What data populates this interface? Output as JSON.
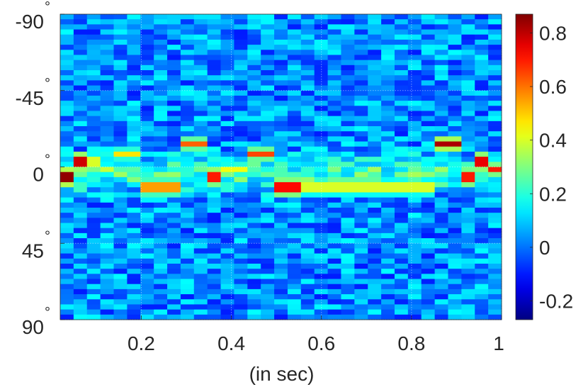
{
  "chart_data": {
    "type": "heatmap",
    "title": "",
    "xlabel": "(in sec)",
    "ylabel": "",
    "xlim": [
      0.02,
      1.0
    ],
    "ylim": [
      -90,
      90
    ],
    "y_reversed": true,
    "x_ticks": [
      {
        "value": 0.2,
        "label": "0.2"
      },
      {
        "value": 0.4,
        "label": "0.4"
      },
      {
        "value": 0.6,
        "label": "0.6"
      },
      {
        "value": 0.8,
        "label": "0.8"
      },
      {
        "value": 1.0,
        "label": "1"
      }
    ],
    "y_ticks": [
      {
        "value": -90,
        "label": "-90",
        "unit": "°"
      },
      {
        "value": -45,
        "label": "-45",
        "unit": "°"
      },
      {
        "value": 0,
        "label": "0",
        "unit": "°"
      },
      {
        "value": 45,
        "label": "45",
        "unit": "°"
      },
      {
        "value": 90,
        "label": "90",
        "unit": "°"
      }
    ],
    "grid": true,
    "colormap": "jet",
    "clim": [
      -0.27,
      0.87
    ],
    "colorbar_ticks": [
      {
        "value": 0.8,
        "label": "0.8"
      },
      {
        "value": 0.6,
        "label": "0.6"
      },
      {
        "value": 0.4,
        "label": "0.4"
      },
      {
        "value": 0.2,
        "label": "0.2"
      },
      {
        "value": 0,
        "label": "0"
      },
      {
        "value": -0.2,
        "label": "-0.2"
      }
    ],
    "time_bins": 33,
    "angle_bins": 60,
    "background_level": 0.03,
    "ridge_band": {
      "angle": 4,
      "level": 0.2
    },
    "peaks": [
      {
        "t_start": 0.02,
        "t_end": 0.05,
        "angle": 6,
        "value": 0.85
      },
      {
        "t_start": 0.05,
        "t_end": 0.08,
        "angle": -3,
        "value": 0.78
      },
      {
        "t_start": 0.08,
        "t_end": 0.11,
        "angle": -3,
        "value": 0.4
      },
      {
        "t_start": 0.11,
        "t_end": 0.14,
        "angle": 2,
        "value": 0.38
      },
      {
        "t_start": 0.14,
        "t_end": 0.2,
        "angle": -7,
        "value": 0.47
      },
      {
        "t_start": 0.2,
        "t_end": 0.29,
        "angle": 12,
        "value": 0.55
      },
      {
        "t_start": 0.29,
        "t_end": 0.35,
        "angle": -13,
        "value": 0.62
      },
      {
        "t_start": 0.35,
        "t_end": 0.38,
        "angle": 6,
        "value": 0.7
      },
      {
        "t_start": 0.38,
        "t_end": 0.44,
        "angle": 1,
        "value": 0.43
      },
      {
        "t_start": 0.44,
        "t_end": 0.5,
        "angle": -7,
        "value": 0.65
      },
      {
        "t_start": 0.5,
        "t_end": 0.56,
        "angle": 12,
        "value": 0.72
      },
      {
        "t_start": 0.56,
        "t_end": 0.86,
        "angle": 12,
        "value": 0.4
      },
      {
        "t_start": 0.86,
        "t_end": 0.92,
        "angle": -14,
        "value": 0.82
      },
      {
        "t_start": 0.92,
        "t_end": 0.95,
        "angle": 6,
        "value": 0.7
      },
      {
        "t_start": 0.95,
        "t_end": 0.98,
        "angle": -3,
        "value": 0.75
      },
      {
        "t_start": 0.98,
        "t_end": 1.0,
        "angle": 2,
        "value": 0.7
      }
    ]
  }
}
